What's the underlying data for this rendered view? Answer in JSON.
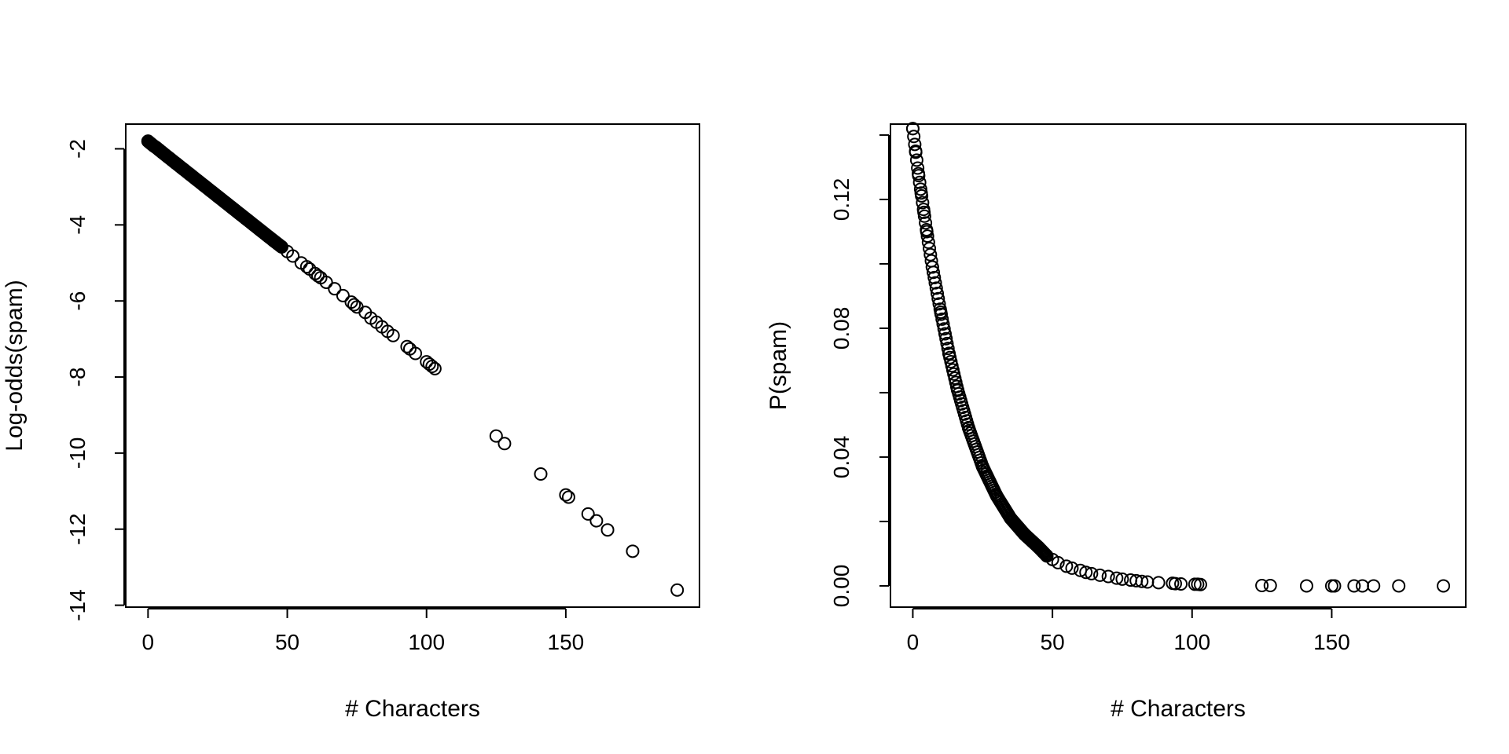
{
  "chart_data": [
    {
      "type": "scatter",
      "title": "",
      "xlabel": "# Characters",
      "ylabel": "Log-odds(spam)",
      "xlim": [
        -8,
        198
      ],
      "ylim": [
        -14.05,
        -1.35
      ],
      "x_ticks": [
        0,
        50,
        100,
        150
      ],
      "y_ticks": [
        -2,
        -4,
        -6,
        -8,
        -10,
        -12,
        -14
      ],
      "x_tick_labels": [
        "0",
        "50",
        "100",
        "150"
      ],
      "y_tick_labels": [
        "-2",
        "-4",
        "-6",
        "-8",
        "-10",
        "-12",
        "-14"
      ],
      "grid": false,
      "legend": "none",
      "marker": "open-circle",
      "color": "#000000",
      "dense_range": {
        "x_min": 0,
        "x_max": 48,
        "description": "continuous band of overlapping points"
      },
      "points": [
        [
          0,
          -1.8
        ],
        [
          1,
          -1.86
        ],
        [
          2,
          -1.92
        ],
        [
          3,
          -1.97
        ],
        [
          4,
          -2.03
        ],
        [
          5,
          -2.09
        ],
        [
          10,
          -2.38
        ],
        [
          15,
          -2.67
        ],
        [
          20,
          -2.96
        ],
        [
          25,
          -3.25
        ],
        [
          30,
          -3.54
        ],
        [
          35,
          -3.83
        ],
        [
          40,
          -4.12
        ],
        [
          45,
          -4.41
        ],
        [
          48,
          -4.58
        ],
        [
          50,
          -4.7
        ],
        [
          52,
          -4.82
        ],
        [
          55,
          -5.0
        ],
        [
          57,
          -5.1
        ],
        [
          58,
          -5.16
        ],
        [
          60,
          -5.28
        ],
        [
          61,
          -5.34
        ],
        [
          62,
          -5.39
        ],
        [
          64,
          -5.51
        ],
        [
          67,
          -5.68
        ],
        [
          70,
          -5.86
        ],
        [
          73,
          -6.03
        ],
        [
          74,
          -6.1
        ],
        [
          75,
          -6.16
        ],
        [
          78,
          -6.3
        ],
        [
          80,
          -6.45
        ],
        [
          82,
          -6.56
        ],
        [
          84,
          -6.68
        ],
        [
          86,
          -6.8
        ],
        [
          88,
          -6.91
        ],
        [
          93,
          -7.2
        ],
        [
          94,
          -7.26
        ],
        [
          96,
          -7.38
        ],
        [
          100,
          -7.6
        ],
        [
          101,
          -7.66
        ],
        [
          102,
          -7.72
        ],
        [
          103,
          -7.78
        ],
        [
          125,
          -9.55
        ],
        [
          128,
          -9.75
        ],
        [
          141,
          -10.55
        ],
        [
          150,
          -11.1
        ],
        [
          151,
          -11.16
        ],
        [
          158,
          -11.6
        ],
        [
          161,
          -11.78
        ],
        [
          165,
          -12.02
        ],
        [
          174,
          -12.58
        ],
        [
          190,
          -13.6
        ]
      ]
    },
    {
      "type": "scatter",
      "title": "",
      "xlabel": "# Characters",
      "ylabel": "P(spam)",
      "xlim": [
        -8,
        198
      ],
      "ylim": [
        -0.0066,
        0.1434
      ],
      "x_ticks": [
        0,
        50,
        100,
        150
      ],
      "y_ticks": [
        0.0,
        0.02,
        0.04,
        0.06,
        0.08,
        0.1,
        0.12,
        0.14
      ],
      "y_label_ticks": [
        0.0,
        0.04,
        0.08,
        0.12
      ],
      "x_tick_labels": [
        "0",
        "50",
        "100",
        "150"
      ],
      "y_tick_labels": [
        "0.00",
        "0.04",
        "0.08",
        "0.12"
      ],
      "grid": false,
      "legend": "none",
      "marker": "open-circle",
      "color": "#000000",
      "dense_range": {
        "x_min": 0,
        "x_max": 48,
        "description": "continuous band of overlapping points"
      },
      "points": [
        [
          0,
          0.142
        ],
        [
          1,
          0.135
        ],
        [
          2,
          0.128
        ],
        [
          3,
          0.122
        ],
        [
          4,
          0.116
        ],
        [
          5,
          0.11
        ],
        [
          7,
          0.099
        ],
        [
          10,
          0.085
        ],
        [
          13,
          0.072
        ],
        [
          16,
          0.061
        ],
        [
          20,
          0.049
        ],
        [
          25,
          0.037
        ],
        [
          30,
          0.028
        ],
        [
          35,
          0.021
        ],
        [
          40,
          0.016
        ],
        [
          45,
          0.012
        ],
        [
          48,
          0.0093
        ],
        [
          50,
          0.0082
        ],
        [
          52,
          0.0072
        ],
        [
          55,
          0.0061
        ],
        [
          57,
          0.0055
        ],
        [
          60,
          0.0048
        ],
        [
          62,
          0.0042
        ],
        [
          64,
          0.0038
        ],
        [
          67,
          0.0033
        ],
        [
          70,
          0.0029
        ],
        [
          73,
          0.0024
        ],
        [
          75,
          0.0021
        ],
        [
          78,
          0.0018
        ],
        [
          80,
          0.0016
        ],
        [
          82,
          0.0014
        ],
        [
          84,
          0.0012
        ],
        [
          88,
          0.001
        ],
        [
          93,
          0.0008
        ],
        [
          94,
          0.0007
        ],
        [
          96,
          0.0006
        ],
        [
          101,
          0.0005
        ],
        [
          102,
          0.0005
        ],
        [
          103,
          0.0004
        ],
        [
          125,
          0.0001
        ],
        [
          128,
          0.0001
        ],
        [
          141,
          0.0
        ],
        [
          150,
          0.0
        ],
        [
          151,
          0.0
        ],
        [
          158,
          0.0
        ],
        [
          161,
          0.0
        ],
        [
          165,
          0.0
        ],
        [
          174,
          0.0
        ],
        [
          190,
          0.0
        ]
      ]
    }
  ]
}
